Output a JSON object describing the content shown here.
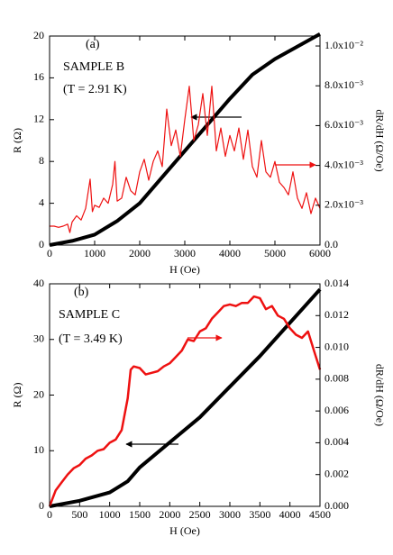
{
  "chart_data": [
    {
      "type": "line",
      "annotations": [
        "(a)",
        "SAMPLE B",
        "(T = 2.91 K)"
      ],
      "xlabel": "H (Oe)",
      "ylabel": "R (Ω)",
      "y2label": "dR/dH (Ω/Oe)",
      "xlim": [
        0,
        6000
      ],
      "xticks": [
        0,
        1000,
        2000,
        3000,
        4000,
        5000,
        6000
      ],
      "ylim": [
        0,
        20
      ],
      "yticks": [
        0,
        4,
        8,
        12,
        16,
        20
      ],
      "y2lim": [
        0,
        0.0105
      ],
      "y2ticks": [
        {
          "value": 0,
          "label": "0.0"
        },
        {
          "value": 0.002,
          "label": "2.0x10⁻³"
        },
        {
          "value": 0.004,
          "label": "4.0x10⁻³"
        },
        {
          "value": 0.006,
          "label": "6.0x10⁻³"
        },
        {
          "value": 0.008,
          "label": "8.0x10⁻³"
        },
        {
          "value": 0.01,
          "label": "1.0x10⁻²"
        }
      ],
      "series": [
        {
          "color": "#000000",
          "width": 4,
          "x": [
            0,
            500,
            1000,
            1500,
            2000,
            2500,
            3000,
            3500,
            4000,
            4500,
            5000,
            5500,
            6000
          ],
          "values": [
            0,
            0.4,
            1.0,
            2.3,
            4.0,
            6.5,
            9.0,
            11.5,
            14.0,
            16.3,
            17.8,
            19.0,
            20.2
          ]
        },
        {
          "color": "#ee1111",
          "width": 1.2,
          "axis": "y2",
          "x": [
            0,
            100,
            200,
            300,
            400,
            450,
            500,
            600,
            700,
            800,
            900,
            950,
            1000,
            1100,
            1200,
            1300,
            1400,
            1450,
            1500,
            1600,
            1700,
            1800,
            1900,
            2000,
            2100,
            2200,
            2300,
            2400,
            2500,
            2600,
            2700,
            2800,
            2900,
            3000,
            3100,
            3200,
            3300,
            3400,
            3500,
            3600,
            3700,
            3800,
            3900,
            4000,
            4100,
            4200,
            4300,
            4400,
            4500,
            4600,
            4700,
            4800,
            4900,
            5000,
            5100,
            5200,
            5300,
            5400,
            5500,
            5600,
            5700,
            5800,
            5900,
            6000
          ],
          "values": [
            0.00095,
            0.00095,
            0.00089,
            0.00095,
            0.00105,
            0.00063,
            0.00116,
            0.00147,
            0.00126,
            0.00184,
            0.00331,
            0.00168,
            0.002,
            0.00189,
            0.00236,
            0.0021,
            0.00305,
            0.0042,
            0.00221,
            0.00236,
            0.00341,
            0.00273,
            0.00252,
            0.00368,
            0.00431,
            0.00326,
            0.0042,
            0.00473,
            0.00394,
            0.00683,
            0.00499,
            0.00578,
            0.00446,
            0.0063,
            0.00798,
            0.00525,
            0.00604,
            0.00761,
            0.00551,
            0.00798,
            0.00473,
            0.00588,
            0.00446,
            0.00551,
            0.00473,
            0.00588,
            0.00431,
            0.00578,
            0.00394,
            0.00341,
            0.00525,
            0.00368,
            0.00341,
            0.0042,
            0.00315,
            0.00289,
            0.00252,
            0.00368,
            0.00236,
            0.00184,
            0.00263,
            0.00158,
            0.00236,
            0.00184
          ]
        }
      ]
    },
    {
      "type": "line",
      "annotations": [
        "(b)",
        "SAMPLE C",
        "(T = 3.49 K)"
      ],
      "xlabel": "H (Oe)",
      "ylabel": "R (Ω)",
      "y2label": "dR/dH  (Ω/Oe)",
      "xlim": [
        0,
        4500
      ],
      "xticks": [
        0,
        500,
        1000,
        1500,
        2000,
        2500,
        3000,
        3500,
        4000,
        4500
      ],
      "ylim": [
        0,
        40
      ],
      "yticks": [
        0,
        10,
        20,
        30,
        40
      ],
      "y2lim": [
        0,
        0.014
      ],
      "y2ticks": [
        {
          "value": 0,
          "label": "0.000"
        },
        {
          "value": 0.002,
          "label": "0.002"
        },
        {
          "value": 0.004,
          "label": "0.004"
        },
        {
          "value": 0.006,
          "label": "0.006"
        },
        {
          "value": 0.008,
          "label": "0.008"
        },
        {
          "value": 0.01,
          "label": "0.010"
        },
        {
          "value": 0.012,
          "label": "0.012"
        },
        {
          "value": 0.014,
          "label": "0.014"
        }
      ],
      "series": [
        {
          "color": "#000000",
          "width": 4,
          "x": [
            0,
            500,
            1000,
            1300,
            1500,
            2000,
            2500,
            3000,
            3500,
            4000,
            4500
          ],
          "values": [
            0,
            1.0,
            2.5,
            4.5,
            7.0,
            11.5,
            16.0,
            21.5,
            27.0,
            33.0,
            39.0
          ]
        },
        {
          "color": "#ee1111",
          "width": 2.5,
          "axis": "y2",
          "x": [
            0,
            100,
            200,
            300,
            400,
            500,
            600,
            700,
            800,
            900,
            1000,
            1100,
            1200,
            1300,
            1350,
            1400,
            1500,
            1600,
            1700,
            1800,
            1900,
            2000,
            2100,
            2200,
            2300,
            2400,
            2500,
            2600,
            2700,
            2800,
            2900,
            3000,
            3100,
            3200,
            3300,
            3400,
            3500,
            3600,
            3700,
            3800,
            3900,
            4000,
            4100,
            4200,
            4300,
            4400,
            4500
          ],
          "values": [
            0,
            0.001,
            0.0015,
            0.002,
            0.0024,
            0.0026,
            0.003,
            0.0032,
            0.0035,
            0.0036,
            0.004,
            0.0042,
            0.0048,
            0.0068,
            0.0086,
            0.0088,
            0.0087,
            0.0083,
            0.0084,
            0.0085,
            0.0088,
            0.009,
            0.0094,
            0.0098,
            0.0105,
            0.0104,
            0.011,
            0.0112,
            0.0118,
            0.0122,
            0.0126,
            0.0127,
            0.0126,
            0.0128,
            0.0128,
            0.0132,
            0.0131,
            0.0124,
            0.0126,
            0.012,
            0.0118,
            0.0112,
            0.0108,
            0.0106,
            0.011,
            0.0098,
            0.0086
          ]
        }
      ]
    }
  ]
}
